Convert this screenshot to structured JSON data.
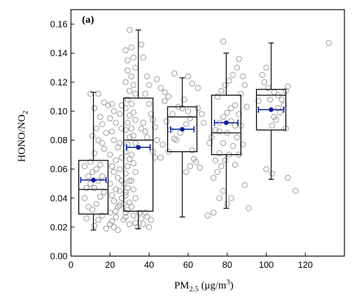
{
  "chart_data": {
    "type": "box",
    "panel_label": "(a)",
    "xlabel": {
      "base": "PM",
      "sub": "2.5",
      "rest": " (μg/m",
      "sup": "3",
      "close": ")"
    },
    "ylabel": {
      "base": "HONO/NO",
      "sub": "2"
    },
    "xlim": [
      0,
      140
    ],
    "ylim": [
      0,
      0.17
    ],
    "xticks": [
      0,
      20,
      40,
      60,
      80,
      100,
      120
    ],
    "yticks": [
      0.0,
      0.02,
      0.04,
      0.06,
      0.08,
      0.1,
      0.12,
      0.14,
      0.16
    ],
    "colors": {
      "mean": "#0b1f9e",
      "points": "#9a9a9a",
      "box": "#000000"
    },
    "boxes": [
      {
        "x": 11.5,
        "mean": 0.0525,
        "mean_x_err": 6.5,
        "whisker_low": 0.018,
        "q1": 0.029,
        "median": 0.046,
        "q3": 0.066,
        "whisker_high": 0.113
      },
      {
        "x": 34.5,
        "mean": 0.075,
        "mean_x_err": 6.0,
        "whisker_low": 0.019,
        "q1": 0.031,
        "median": 0.08,
        "q3": 0.109,
        "whisker_high": 0.156
      },
      {
        "x": 57.0,
        "mean": 0.0875,
        "mean_x_err": 6.0,
        "whisker_low": 0.027,
        "q1": 0.072,
        "median": 0.096,
        "q3": 0.103,
        "whisker_high": 0.123
      },
      {
        "x": 79.5,
        "mean": 0.092,
        "mean_x_err": 6.0,
        "whisker_low": 0.033,
        "q1": 0.07,
        "median": 0.085,
        "q3": 0.111,
        "whisker_high": 0.14
      },
      {
        "x": 102.5,
        "mean": 0.101,
        "mean_x_err": 6.5,
        "whisker_low": 0.053,
        "q1": 0.087,
        "median": 0.111,
        "q3": 0.115,
        "whisker_high": 0.147
      }
    ],
    "points": [
      [
        10,
        0.112
      ],
      [
        14,
        0.112
      ],
      [
        12,
        0.102
      ],
      [
        17,
        0.106
      ],
      [
        19,
        0.104
      ],
      [
        15,
        0.096
      ],
      [
        16,
        0.091
      ],
      [
        13,
        0.088
      ],
      [
        18,
        0.085
      ],
      [
        11,
        0.083
      ],
      [
        14,
        0.08
      ],
      [
        16,
        0.078
      ],
      [
        17,
        0.074
      ],
      [
        12,
        0.071
      ],
      [
        10,
        0.065
      ],
      [
        15,
        0.063
      ],
      [
        13,
        0.06
      ],
      [
        11,
        0.058
      ],
      [
        16,
        0.055
      ],
      [
        14,
        0.052
      ],
      [
        10,
        0.05
      ],
      [
        12,
        0.047
      ],
      [
        17,
        0.044
      ],
      [
        15,
        0.041
      ],
      [
        13,
        0.036
      ],
      [
        11,
        0.032
      ],
      [
        16,
        0.028
      ],
      [
        14,
        0.025
      ],
      [
        12,
        0.021
      ],
      [
        18,
        0.019
      ],
      [
        7,
        0.062
      ],
      [
        9,
        0.055
      ],
      [
        8,
        0.047
      ],
      [
        7,
        0.04
      ],
      [
        9,
        0.034
      ],
      [
        8,
        0.026
      ],
      [
        21,
        0.105
      ],
      [
        22,
        0.1
      ],
      [
        20,
        0.095
      ],
      [
        23,
        0.092
      ],
      [
        21,
        0.086
      ],
      [
        22,
        0.08
      ],
      [
        24,
        0.075
      ],
      [
        20,
        0.07
      ],
      [
        23,
        0.066
      ],
      [
        21,
        0.062
      ],
      [
        22,
        0.058
      ],
      [
        24,
        0.054
      ],
      [
        20,
        0.05
      ],
      [
        23,
        0.046
      ],
      [
        21,
        0.042
      ],
      [
        22,
        0.038
      ],
      [
        24,
        0.034
      ],
      [
        20,
        0.03
      ],
      [
        23,
        0.027
      ],
      [
        21,
        0.024
      ],
      [
        22,
        0.02
      ],
      [
        24,
        0.018
      ],
      [
        20,
        0.022
      ],
      [
        23,
        0.031
      ],
      [
        25,
        0.035
      ],
      [
        26,
        0.04
      ],
      [
        25,
        0.045
      ],
      [
        26,
        0.052
      ],
      [
        25,
        0.06
      ],
      [
        26,
        0.068
      ],
      [
        25,
        0.078
      ],
      [
        26,
        0.088
      ],
      [
        25,
        0.098
      ],
      [
        26,
        0.104
      ],
      [
        27,
        0.025
      ],
      [
        28,
        0.03
      ],
      [
        27,
        0.036
      ],
      [
        28,
        0.044
      ],
      [
        27,
        0.05
      ],
      [
        28,
        0.142
      ],
      [
        29,
        0.135
      ],
      [
        30,
        0.156
      ],
      [
        29,
        0.128
      ],
      [
        28,
        0.12
      ],
      [
        30,
        0.114
      ],
      [
        29,
        0.108
      ],
      [
        28,
        0.102
      ],
      [
        30,
        0.097
      ],
      [
        29,
        0.092
      ],
      [
        28,
        0.087
      ],
      [
        30,
        0.082
      ],
      [
        29,
        0.077
      ],
      [
        28,
        0.072
      ],
      [
        30,
        0.067
      ],
      [
        29,
        0.062
      ],
      [
        28,
        0.057
      ],
      [
        30,
        0.052
      ],
      [
        29,
        0.047
      ],
      [
        28,
        0.042
      ],
      [
        30,
        0.037
      ],
      [
        29,
        0.032
      ],
      [
        28,
        0.027
      ],
      [
        30,
        0.022
      ],
      [
        31,
        0.144
      ],
      [
        32,
        0.137
      ],
      [
        33,
        0.13
      ],
      [
        31,
        0.124
      ],
      [
        32,
        0.118
      ],
      [
        33,
        0.112
      ],
      [
        31,
        0.105
      ],
      [
        32,
        0.099
      ],
      [
        33,
        0.094
      ],
      [
        31,
        0.088
      ],
      [
        32,
        0.083
      ],
      [
        33,
        0.078
      ],
      [
        31,
        0.07
      ],
      [
        32,
        0.064
      ],
      [
        33,
        0.058
      ],
      [
        31,
        0.052
      ],
      [
        32,
        0.046
      ],
      [
        33,
        0.04
      ],
      [
        31,
        0.034
      ],
      [
        32,
        0.028
      ],
      [
        33,
        0.023
      ],
      [
        34,
        0.02
      ],
      [
        35,
        0.03
      ],
      [
        36,
        0.088
      ],
      [
        37,
        0.092
      ],
      [
        38,
        0.086
      ],
      [
        39,
        0.082
      ],
      [
        36,
        0.026
      ],
      [
        37,
        0.022
      ],
      [
        38,
        0.03
      ],
      [
        39,
        0.027
      ],
      [
        40,
        0.02
      ],
      [
        41,
        0.025
      ],
      [
        40,
        0.105
      ],
      [
        41,
        0.098
      ],
      [
        38,
        0.112
      ],
      [
        39,
        0.124
      ],
      [
        40,
        0.118
      ],
      [
        42,
        0.094
      ],
      [
        43,
        0.089
      ],
      [
        42,
        0.072
      ],
      [
        43,
        0.068
      ],
      [
        44,
        0.08
      ],
      [
        36,
        0.146
      ],
      [
        37,
        0.137
      ],
      [
        48,
        0.107
      ],
      [
        50,
        0.11
      ],
      [
        52,
        0.098
      ],
      [
        49,
        0.093
      ],
      [
        51,
        0.087
      ],
      [
        53,
        0.081
      ],
      [
        47,
        0.077
      ],
      [
        50,
        0.072
      ],
      [
        46,
        0.068
      ],
      [
        44,
        0.122
      ],
      [
        46,
        0.116
      ],
      [
        48,
        0.113
      ],
      [
        53,
        0.126
      ],
      [
        55,
        0.103
      ],
      [
        57,
        0.102
      ],
      [
        58,
        0.108
      ],
      [
        60,
        0.1
      ],
      [
        61,
        0.095
      ],
      [
        59,
        0.091
      ],
      [
        56,
        0.085
      ],
      [
        54,
        0.08
      ],
      [
        62,
        0.073
      ],
      [
        63,
        0.067
      ],
      [
        61,
        0.062
      ],
      [
        59,
        0.058
      ],
      [
        64,
        0.065
      ],
      [
        66,
        0.061
      ],
      [
        65,
        0.102
      ],
      [
        67,
        0.098
      ],
      [
        68,
        0.092
      ],
      [
        62,
        0.119
      ],
      [
        60,
        0.124
      ],
      [
        65,
        0.116
      ],
      [
        70,
        0.028
      ],
      [
        73,
        0.03
      ],
      [
        71,
        0.078
      ],
      [
        72,
        0.082
      ],
      [
        74,
        0.087
      ],
      [
        76,
        0.092
      ],
      [
        78,
        0.096
      ],
      [
        80,
        0.099
      ],
      [
        82,
        0.102
      ],
      [
        84,
        0.104
      ],
      [
        75,
        0.11
      ],
      [
        77,
        0.114
      ],
      [
        79,
        0.118
      ],
      [
        81,
        0.121
      ],
      [
        83,
        0.125
      ],
      [
        85,
        0.13
      ],
      [
        78,
        0.148
      ],
      [
        86,
        0.098
      ],
      [
        87,
        0.09
      ],
      [
        85,
        0.082
      ],
      [
        83,
        0.076
      ],
      [
        81,
        0.07
      ],
      [
        79,
        0.066
      ],
      [
        77,
        0.062
      ],
      [
        75,
        0.058
      ],
      [
        73,
        0.054
      ],
      [
        76,
        0.071
      ],
      [
        74,
        0.066
      ],
      [
        88,
        0.077
      ],
      [
        86,
        0.07
      ],
      [
        84,
        0.063
      ],
      [
        82,
        0.04
      ],
      [
        80,
        0.036
      ],
      [
        87,
        0.112
      ],
      [
        89,
        0.118
      ],
      [
        90,
        0.103
      ],
      [
        88,
        0.124
      ],
      [
        86,
        0.136
      ],
      [
        91,
        0.033
      ],
      [
        89,
        0.049
      ],
      [
        78,
        0.045
      ],
      [
        76,
        0.04
      ],
      [
        84,
        0.09
      ],
      [
        80,
        0.085
      ],
      [
        82,
        0.093
      ],
      [
        78,
        0.078
      ],
      [
        76,
        0.086
      ],
      [
        96,
        0.107
      ],
      [
        98,
        0.125
      ],
      [
        100,
        0.13
      ],
      [
        99,
        0.12
      ],
      [
        101,
        0.116
      ],
      [
        104,
        0.113
      ],
      [
        106,
        0.111
      ],
      [
        108,
        0.108
      ],
      [
        110,
        0.114
      ],
      [
        111,
        0.117
      ],
      [
        109,
        0.104
      ],
      [
        107,
        0.099
      ],
      [
        105,
        0.094
      ],
      [
        103,
        0.09
      ],
      [
        110,
        0.088
      ],
      [
        100,
        0.06
      ],
      [
        103,
        0.057
      ],
      [
        111,
        0.054
      ],
      [
        115,
        0.045
      ],
      [
        132,
        0.147
      ],
      [
        104,
        0.096
      ],
      [
        102,
        0.108
      ],
      [
        106,
        0.102
      ]
    ]
  }
}
